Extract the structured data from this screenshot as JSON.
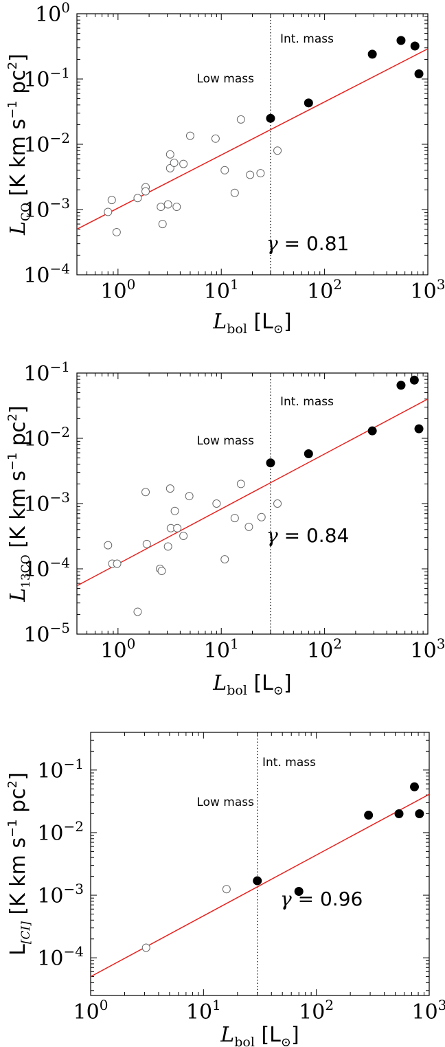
{
  "chart_data": [
    {
      "type": "scatter",
      "scale": "log-log",
      "xlabel": {
        "main": "L",
        "sub": "bol",
        "unit": "[L",
        "sun": "⊙",
        "close": "]"
      },
      "ylabel": {
        "main": "L",
        "sub": "CO",
        "unit": "[K km s",
        "exp": "−1",
        "pc": " pc",
        "pcexp": "2",
        "close": "]"
      },
      "xlim": [
        0.4,
        1000
      ],
      "ylim": [
        0.0001,
        1
      ],
      "xticks": [
        {
          "v": 1,
          "e": "0"
        },
        {
          "v": 10,
          "e": "1"
        },
        {
          "v": 100,
          "e": "2"
        },
        {
          "v": 1000,
          "e": "3"
        }
      ],
      "yticks": [
        {
          "v": 0.0001,
          "e": "−4"
        },
        {
          "v": 0.001,
          "e": "−3"
        },
        {
          "v": 0.01,
          "e": "−2"
        },
        {
          "v": 0.1,
          "e": "−1"
        },
        {
          "v": 1,
          "e": "0"
        }
      ],
      "vline_x": 30,
      "annotations": {
        "low_mass": "Low mass",
        "int_mass": "Int. mass",
        "gamma": "γ",
        "gamma_text": " = 0.81"
      },
      "fit_line": [
        [
          0.4,
          0.0005
        ],
        [
          1000,
          0.29
        ]
      ],
      "series": [
        {
          "marker": "open",
          "points": [
            [
              0.8,
              0.00092
            ],
            [
              0.87,
              0.0014
            ],
            [
              0.97,
              0.00045
            ],
            [
              1.55,
              0.0015
            ],
            [
              1.85,
              0.0022
            ],
            [
              1.85,
              0.0019
            ],
            [
              2.6,
              0.0011
            ],
            [
              2.7,
              0.0006
            ],
            [
              3.05,
              0.0012
            ],
            [
              3.2,
              0.007
            ],
            [
              3.2,
              0.0043
            ],
            [
              3.5,
              0.0052
            ],
            [
              3.7,
              0.0011
            ],
            [
              4.3,
              0.005
            ],
            [
              5.0,
              0.0135
            ],
            [
              8.8,
              0.0122
            ],
            [
              10.8,
              0.004
            ],
            [
              13.5,
              0.0018
            ],
            [
              15.5,
              0.024
            ],
            [
              19.0,
              0.0034
            ],
            [
              24.0,
              0.0036
            ],
            [
              35.0,
              0.008
            ]
          ]
        },
        {
          "marker": "filled",
          "points": [
            [
              30,
              0.025
            ],
            [
              70,
              0.043
            ],
            [
              290,
              0.24
            ],
            [
              550,
              0.39
            ],
            [
              750,
              0.32
            ],
            [
              820,
              0.12
            ]
          ]
        }
      ]
    },
    {
      "type": "scatter",
      "scale": "log-log",
      "xlabel": {
        "main": "L",
        "sub": "bol",
        "unit": "[L",
        "sun": "⊙",
        "close": "]"
      },
      "ylabel": {
        "main": "L",
        "sub": "13CO",
        "unit": "[K km s",
        "exp": "−1",
        "pc": " pc",
        "pcexp": "2",
        "close": "]"
      },
      "xlim": [
        0.4,
        1000
      ],
      "ylim": [
        1e-05,
        0.1
      ],
      "xticks": [
        {
          "v": 1,
          "e": "0"
        },
        {
          "v": 10,
          "e": "1"
        },
        {
          "v": 100,
          "e": "2"
        },
        {
          "v": 1000,
          "e": "3"
        }
      ],
      "yticks": [
        {
          "v": 1e-05,
          "e": "−5"
        },
        {
          "v": 0.0001,
          "e": "−4"
        },
        {
          "v": 0.001,
          "e": "−3"
        },
        {
          "v": 0.01,
          "e": "−2"
        },
        {
          "v": 0.1,
          "e": "−1"
        }
      ],
      "vline_x": 30,
      "annotations": {
        "low_mass": "Low mass",
        "int_mass": "Int. mass",
        "gamma": "γ",
        "gamma_text": " = 0.84"
      },
      "fit_line": [
        [
          0.4,
          5.5e-05
        ],
        [
          1000,
          0.04
        ]
      ],
      "series": [
        {
          "marker": "open",
          "points": [
            [
              0.8,
              0.00023
            ],
            [
              0.88,
              0.00012
            ],
            [
              0.98,
              0.00012
            ],
            [
              1.55,
              2.2e-05
            ],
            [
              1.85,
              0.0015
            ],
            [
              1.9,
              0.00024
            ],
            [
              2.55,
              0.0001
            ],
            [
              2.65,
              9.3e-05
            ],
            [
              3.05,
              0.00022
            ],
            [
              3.2,
              0.0017
            ],
            [
              3.25,
              0.00042
            ],
            [
              3.55,
              0.00077
            ],
            [
              3.75,
              0.00042
            ],
            [
              4.3,
              0.00032
            ],
            [
              4.9,
              0.0013
            ],
            [
              9.0,
              0.001
            ],
            [
              10.8,
              0.00014
            ],
            [
              13.5,
              0.0006
            ],
            [
              15.5,
              0.002
            ],
            [
              18.5,
              0.00044
            ],
            [
              24.5,
              0.00062
            ],
            [
              35.0,
              0.001
            ]
          ]
        },
        {
          "marker": "filled",
          "points": [
            [
              30,
              0.0042
            ],
            [
              70,
              0.0058
            ],
            [
              290,
              0.013
            ],
            [
              550,
              0.065
            ],
            [
              740,
              0.078
            ],
            [
              820,
              0.014
            ]
          ]
        }
      ]
    },
    {
      "type": "scatter",
      "scale": "log-log",
      "xlabel": {
        "main": "L",
        "sub": "bol",
        "unit": "[L",
        "sun": "⊙",
        "close": "]"
      },
      "ylabel": {
        "main": "L",
        "sub": "[CI]",
        "unit": "[K km s",
        "exp": "−1",
        "pc": " pc",
        "pcexp": "2",
        "close": "]"
      },
      "xlim": [
        1,
        1000
      ],
      "ylim": [
        2.5e-05,
        0.4
      ],
      "xticks": [
        {
          "v": 1,
          "e": "0"
        },
        {
          "v": 10,
          "e": "1"
        },
        {
          "v": 100,
          "e": "2"
        },
        {
          "v": 1000,
          "e": "3"
        }
      ],
      "yticks": [
        {
          "v": 0.0001,
          "e": "−4"
        },
        {
          "v": 0.001,
          "e": "−3"
        },
        {
          "v": 0.01,
          "e": "−2"
        },
        {
          "v": 0.1,
          "e": "−1"
        }
      ],
      "vline_x": 30,
      "annotations": {
        "low_mass": "Low mass",
        "int_mass": "Int. mass",
        "gamma": "γ",
        "gamma_text": " = 0.96"
      },
      "fit_line": [
        [
          1,
          5e-05
        ],
        [
          1000,
          0.041
        ]
      ],
      "series": [
        {
          "marker": "open",
          "points": [
            [
              3.1,
              0.000145
            ],
            [
              16,
              0.00125
            ]
          ]
        },
        {
          "marker": "filled",
          "points": [
            [
              30,
              0.0017
            ],
            [
              70,
              0.00115
            ],
            [
              290,
              0.019
            ],
            [
              540,
              0.02
            ],
            [
              740,
              0.054
            ],
            [
              820,
              0.02
            ]
          ]
        }
      ]
    }
  ]
}
